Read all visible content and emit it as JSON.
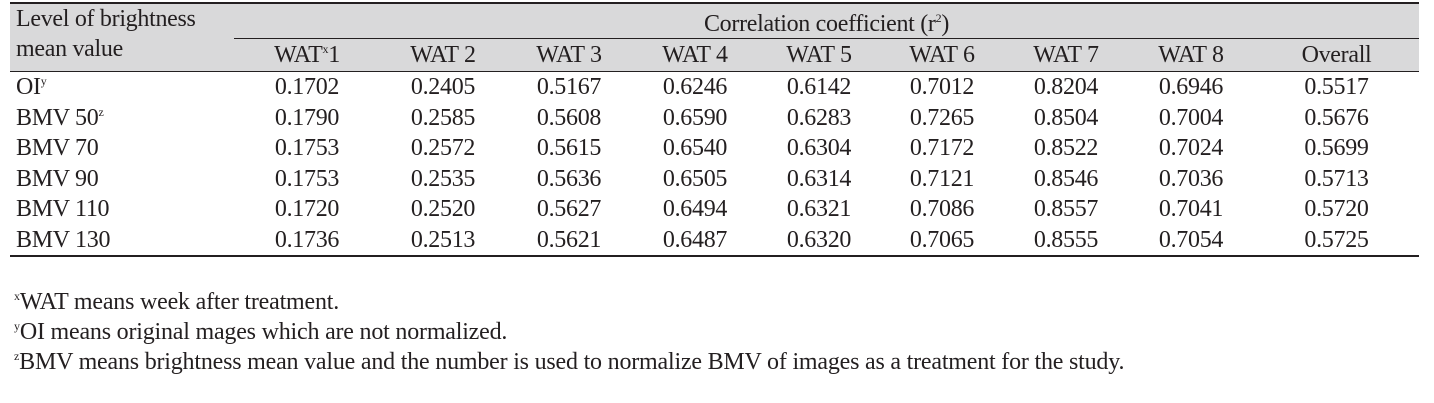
{
  "table": {
    "stub_header_line1": "Level of brightness",
    "stub_header_line2": "mean value",
    "group_header": "Correlation coefficient (r",
    "group_header_sup": "2",
    "group_header_close": ")",
    "columns": [
      {
        "label": "WAT",
        "sup": "x",
        "suffix": "1"
      },
      {
        "label": "WAT 2",
        "sup": "",
        "suffix": ""
      },
      {
        "label": "WAT 3",
        "sup": "",
        "suffix": ""
      },
      {
        "label": "WAT 4",
        "sup": "",
        "suffix": ""
      },
      {
        "label": "WAT 5",
        "sup": "",
        "suffix": ""
      },
      {
        "label": "WAT 6",
        "sup": "",
        "suffix": ""
      },
      {
        "label": "WAT 7",
        "sup": "",
        "suffix": ""
      },
      {
        "label": "WAT 8",
        "sup": "",
        "suffix": ""
      },
      {
        "label": "Overall",
        "sup": "",
        "suffix": ""
      }
    ],
    "rows": [
      {
        "label": "OI",
        "sup": "y",
        "values": [
          "0.1702",
          "0.2405",
          "0.5167",
          "0.6246",
          "0.6142",
          "0.7012",
          "0.8204",
          "0.6946",
          "0.5517"
        ]
      },
      {
        "label": "BMV 50",
        "sup": "z",
        "values": [
          "0.1790",
          "0.2585",
          "0.5608",
          "0.6590",
          "0.6283",
          "0.7265",
          "0.8504",
          "0.7004",
          "0.5676"
        ]
      },
      {
        "label": "BMV 70",
        "sup": "",
        "values": [
          "0.1753",
          "0.2572",
          "0.5615",
          "0.6540",
          "0.6304",
          "0.7172",
          "0.8522",
          "0.7024",
          "0.5699"
        ]
      },
      {
        "label": "BMV 90",
        "sup": "",
        "values": [
          "0.1753",
          "0.2535",
          "0.5636",
          "0.6505",
          "0.6314",
          "0.7121",
          "0.8546",
          "0.7036",
          "0.5713"
        ]
      },
      {
        "label": "BMV 110",
        "sup": "",
        "values": [
          "0.1720",
          "0.2520",
          "0.5627",
          "0.6494",
          "0.6321",
          "0.7086",
          "0.8557",
          "0.7041",
          "0.5720"
        ]
      },
      {
        "label": "BMV 130",
        "sup": "",
        "values": [
          "0.1736",
          "0.2513",
          "0.5621",
          "0.6487",
          "0.6320",
          "0.7065",
          "0.8555",
          "0.7054",
          "0.5725"
        ]
      }
    ]
  },
  "footnotes": [
    {
      "sup": "x",
      "text": "WAT means week after treatment."
    },
    {
      "sup": "y",
      "text": "OI means original mages which are not normalized."
    },
    {
      "sup": "z",
      "text": "BMV means brightness mean value and the number is used to normalize BMV of images as a treatment for the study."
    }
  ]
}
